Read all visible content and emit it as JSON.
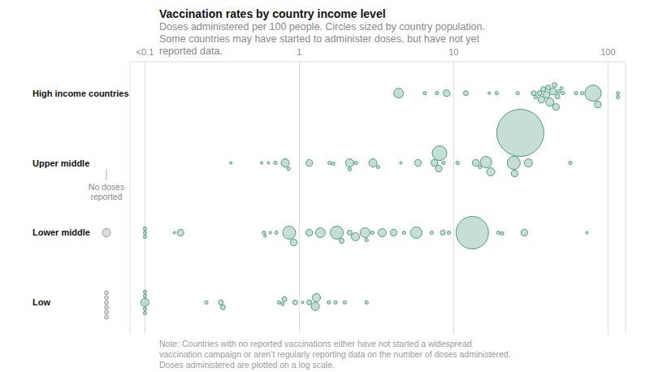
{
  "chart_data": {
    "type": "scatter",
    "title": "Vaccination rates by country income level",
    "subtitle": "Doses administered per 100 people. Circles sized by country population. Some countries may have started to administer doses, but have not yet reported data.",
    "note": "Note: Countries with no reported vaccinations either have not started a widespread vaccination campaign or aren’t regularly reporting data on the number of doses administered. Doses administered are plotted on a log scale.",
    "log": "x",
    "grid": true,
    "color": "#4f9a80",
    "xlim": [
      0.08,
      130
    ],
    "xticks": [
      {
        "value": 0.1,
        "label": "<0.1"
      },
      1,
      10,
      100
    ],
    "categories": [
      "High income countries",
      "Upper middle",
      "Lower middle",
      "Low"
    ],
    "x": [
      [
        4.4,
        6.5,
        7.8,
        9,
        12,
        17,
        19,
        26,
        33,
        34,
        36,
        37,
        38,
        40,
        41,
        42,
        44,
        45,
        46,
        47,
        48,
        50,
        51,
        62,
        68,
        80,
        86,
        116,
        116
      ],
      [
        0.36,
        0.57,
        0.63,
        0.7,
        0.81,
        0.85,
        1.16,
        1.57,
        1.66,
        2.12,
        2.12,
        2.33,
        3.0,
        3.24,
        4.55,
        5.87,
        7.5,
        8.0,
        8.1,
        8.6,
        10.6,
        13.9,
        14.8,
        16.2,
        17.4,
        24.5,
        24.8,
        27,
        30.5,
        57
      ],
      [
        0.1,
        0.1,
        0.1,
        0.155,
        0.17,
        0.59,
        0.6,
        0.65,
        0.71,
        0.86,
        0.92,
        1.16,
        1.37,
        1.75,
        1.88,
        2.12,
        2.31,
        2.67,
        2.73,
        2.98,
        3.44,
        4.08,
        4.77,
        5.73,
        7.2,
        8.5,
        9.3,
        13.2,
        19.5,
        20.6,
        28.7,
        73
      ],
      [
        0.1,
        0.1,
        0.1,
        0.1,
        0.1,
        0.25,
        0.31,
        0.32,
        0.74,
        0.78,
        0.8,
        0.94,
        1.05,
        1.16,
        1.27,
        1.29,
        1.55,
        1.72,
        1.97,
        2.73
      ]
    ],
    "sizes": [
      [
        60,
        7,
        7,
        27,
        15,
        4,
        7,
        7,
        15,
        7,
        15,
        27,
        15,
        27,
        15,
        42,
        27,
        15,
        27,
        15,
        7,
        7,
        7,
        7,
        7,
        167,
        27,
        7,
        7
      ],
      [
        4,
        4,
        4,
        7,
        42,
        7,
        27,
        7,
        7,
        42,
        7,
        7,
        42,
        7,
        4,
        27,
        27,
        27,
        135,
        7,
        7,
        27,
        7,
        82,
        42,
        107,
        27,
        1400,
        42,
        7
      ],
      [
        7,
        7,
        7,
        4,
        27,
        7,
        4,
        4,
        7,
        107,
        27,
        27,
        60,
        107,
        15,
        15,
        42,
        60,
        7,
        7,
        42,
        27,
        7,
        82,
        7,
        15,
        7,
        666,
        7,
        7,
        27,
        4
      ],
      [
        42,
        7,
        7,
        7,
        7,
        7,
        15,
        15,
        7,
        7,
        15,
        15,
        4,
        15,
        42,
        42,
        7,
        7,
        7,
        7
      ]
    ],
    "no_doses": {
      "label": "No doses reported",
      "color": "#999999",
      "sizes": [
        [],
        [],
        [
          42
        ],
        [
          10,
          10,
          10,
          10,
          10,
          10
        ]
      ]
    }
  }
}
